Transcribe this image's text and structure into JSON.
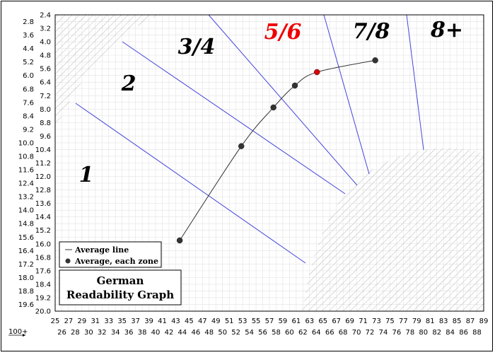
{
  "chart_data": {
    "type": "scatter",
    "title_lines": [
      "German",
      "Readability Graph"
    ],
    "x_axis_label": "100+",
    "x_ticks_top": [
      25,
      27,
      29,
      31,
      33,
      35,
      37,
      39,
      41,
      43,
      45,
      47,
      49,
      51,
      53,
      55,
      57,
      59,
      61,
      63,
      65,
      67,
      69,
      71,
      73,
      75,
      77,
      79,
      81,
      83,
      85,
      87,
      89
    ],
    "x_ticks_bottom": [
      26,
      28,
      30,
      32,
      34,
      36,
      38,
      40,
      42,
      44,
      46,
      48,
      50,
      52,
      54,
      56,
      58,
      60,
      62,
      64,
      66,
      68,
      70,
      72,
      74,
      76,
      78,
      80,
      82,
      84,
      86,
      88
    ],
    "y_ticks_left": [
      2.8,
      3.6,
      4.4,
      5.2,
      6.0,
      6.8,
      7.6,
      8.4,
      9.2,
      10.0,
      10.8,
      11.6,
      12.4,
      13.2,
      14.0,
      14.8,
      15.6,
      16.4,
      17.2,
      18.0,
      18.8,
      19.6
    ],
    "y_ticks_right": [
      2.4,
      3.2,
      4.0,
      4.8,
      5.6,
      6.4,
      7.2,
      8.0,
      8.8,
      9.6,
      10.4,
      11.2,
      12.0,
      12.8,
      13.6,
      14.4,
      15.2,
      16.0,
      16.8,
      17.6,
      18.4,
      19.2,
      20.0
    ],
    "xlim": [
      25,
      89
    ],
    "ylim": [
      2.4,
      20.0
    ],
    "zones": [
      {
        "label": "1",
        "color": "#000000"
      },
      {
        "label": "2",
        "color": "#000000"
      },
      {
        "label": "3/4",
        "color": "#000000"
      },
      {
        "label": "5/6",
        "color": "#ee0000"
      },
      {
        "label": "7/8",
        "color": "#000000"
      },
      {
        "label": "8+",
        "color": "#000000"
      }
    ],
    "series": [
      {
        "name": "Average line",
        "type": "line"
      },
      {
        "name": "Average, each zone",
        "type": "points",
        "points": [
          {
            "x": 43.6,
            "y": 15.8,
            "color": "#333333"
          },
          {
            "x": 52.8,
            "y": 10.2,
            "color": "#333333"
          },
          {
            "x": 57.6,
            "y": 7.9,
            "color": "#333333"
          },
          {
            "x": 60.8,
            "y": 6.6,
            "color": "#333333"
          },
          {
            "x": 64.1,
            "y": 5.8,
            "color": "#dd0000"
          },
          {
            "x": 72.8,
            "y": 5.1,
            "color": "#333333"
          }
        ]
      }
    ],
    "grid": true,
    "legend_position": "bottom-left",
    "colors": {
      "boundary": "#4444dd",
      "grid": "#e2e2e2",
      "hatch": "#b8b8b8"
    }
  }
}
